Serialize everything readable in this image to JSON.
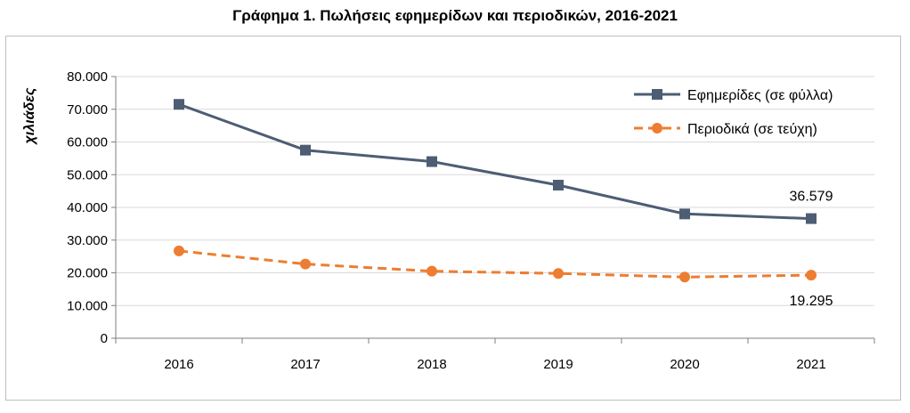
{
  "chart_data": {
    "type": "line",
    "title": "Γράφημα 1. Πωλήσεις εφημερίδων και περιοδικών, 2016-2021",
    "ylabel": "χιλιάδες",
    "xlabel": "",
    "categories": [
      "2016",
      "2017",
      "2018",
      "2019",
      "2020",
      "2021"
    ],
    "ylim": [
      0,
      80000
    ],
    "yticks": [
      0,
      10000,
      20000,
      30000,
      40000,
      50000,
      60000,
      70000,
      80000
    ],
    "ytick_labels": [
      "0",
      "10.000",
      "20.000",
      "30.000",
      "40.000",
      "50.000",
      "60.000",
      "70.000",
      "80.000"
    ],
    "grid": true,
    "legend_position": "top-right",
    "series": [
      {
        "name": "Εφημερίδες  (σε φύλλα)",
        "values": [
          71500,
          57500,
          54000,
          46800,
          38000,
          36579
        ],
        "color": "#4d5d73",
        "marker": "square",
        "style": "solid"
      },
      {
        "name": "Περιοδικά  (σε τεύχη)",
        "values": [
          26700,
          22700,
          20500,
          19800,
          18700,
          19295
        ],
        "color": "#ed7d31",
        "marker": "circle",
        "style": "dashed"
      }
    ],
    "annotations": [
      {
        "series": 0,
        "category": "2021",
        "text": "36.579",
        "position": "above"
      },
      {
        "series": 1,
        "category": "2021",
        "text": "19.295",
        "position": "below"
      }
    ]
  }
}
